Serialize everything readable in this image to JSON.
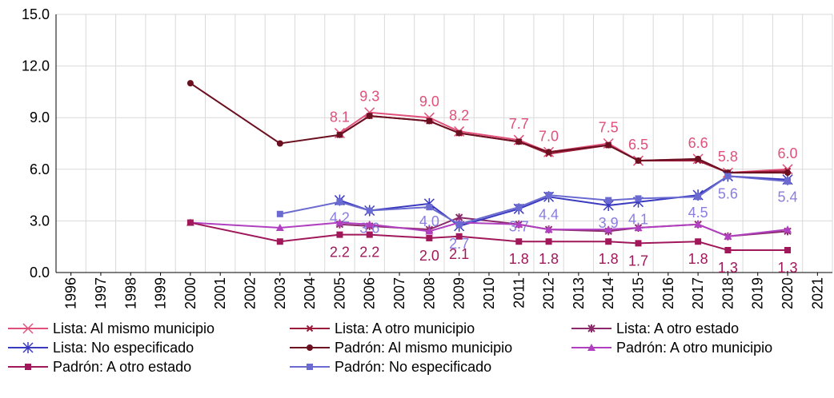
{
  "chart_data": {
    "type": "line",
    "categories": [
      "1996",
      "1997",
      "1998",
      "1999",
      "2000",
      "2001",
      "2002",
      "2003",
      "2004",
      "2005",
      "2006",
      "2007",
      "2008",
      "2009",
      "2010",
      "2011",
      "2012",
      "2013",
      "2014",
      "2015",
      "2016",
      "2017",
      "2018",
      "2019",
      "2020",
      "2021"
    ],
    "ylim": [
      0,
      15
    ],
    "yticks": [
      {
        "value": 0,
        "label": "0.0"
      },
      {
        "value": 3,
        "label": "3.0"
      },
      {
        "value": 6,
        "label": "6.0"
      },
      {
        "value": 9,
        "label": "9.0"
      },
      {
        "value": 12,
        "label": "12.0"
      },
      {
        "value": 15,
        "label": "15.0"
      }
    ],
    "grid": true,
    "series": [
      {
        "name": "Lista: Al mismo municipio",
        "color": "#e0507a",
        "marker": "x",
        "label_position": "above",
        "values": [
          null,
          null,
          null,
          null,
          null,
          null,
          null,
          null,
          null,
          8.1,
          9.3,
          null,
          9.0,
          8.2,
          null,
          7.7,
          7.0,
          null,
          7.5,
          6.5,
          null,
          6.6,
          5.8,
          null,
          6.0,
          null
        ],
        "value_labels": [
          null,
          null,
          null,
          null,
          null,
          null,
          null,
          null,
          null,
          "8.1",
          "9.3",
          null,
          "9.0",
          "8.2",
          null,
          "7.7",
          "7.0",
          null,
          "7.5",
          "6.5",
          null,
          "6.6",
          "5.8",
          null,
          "6.0",
          null
        ]
      },
      {
        "name": "Lista: A otro municipio",
        "color": "#9b1b3a",
        "marker": "smallx",
        "values": [
          null,
          null,
          null,
          null,
          null,
          null,
          null,
          null,
          null,
          8.0,
          9.1,
          null,
          8.8,
          8.1,
          null,
          7.6,
          6.9,
          null,
          7.4,
          6.5,
          null,
          6.5,
          5.8,
          null,
          5.9,
          null
        ]
      },
      {
        "name": "Lista: A otro estado",
        "color": "#8b2a6a",
        "marker": "asterisk",
        "values": [
          null,
          null,
          null,
          null,
          null,
          null,
          null,
          null,
          null,
          2.8,
          2.7,
          null,
          2.5,
          3.2,
          null,
          2.8,
          2.5,
          null,
          2.4,
          2.6,
          null,
          2.8,
          2.1,
          null,
          2.4,
          null
        ]
      },
      {
        "name": "Lista: No especificado",
        "color": "#3a3ac0",
        "marker": "star",
        "label_position": "below",
        "label_color": "#8a7ee0",
        "values": [
          null,
          null,
          null,
          null,
          null,
          null,
          null,
          null,
          null,
          4.2,
          3.6,
          null,
          4.0,
          2.7,
          null,
          3.7,
          4.4,
          null,
          3.9,
          4.1,
          null,
          4.5,
          5.6,
          null,
          5.4,
          null
        ],
        "value_labels": [
          null,
          null,
          null,
          null,
          null,
          null,
          null,
          null,
          null,
          "4.2",
          "3.6",
          null,
          "4.0",
          "2.7",
          null,
          "3.7",
          "4.4",
          null,
          "3.9",
          "4.1",
          null,
          "4.5",
          "5.6",
          null,
          "5.4",
          null
        ]
      },
      {
        "name": "Padrón: Al mismo municipio",
        "color": "#6b1020",
        "marker": "circle",
        "values": [
          null,
          null,
          null,
          null,
          11.0,
          null,
          null,
          7.5,
          null,
          8.0,
          9.1,
          null,
          8.8,
          8.1,
          null,
          7.6,
          7.0,
          null,
          7.4,
          6.5,
          null,
          6.6,
          5.8,
          null,
          5.8,
          null
        ]
      },
      {
        "name": "Padrón: A otro municipio",
        "color": "#b040c0",
        "marker": "triangle",
        "values": [
          null,
          null,
          null,
          null,
          2.9,
          null,
          null,
          2.6,
          null,
          2.9,
          2.8,
          null,
          2.4,
          2.9,
          null,
          2.8,
          2.5,
          null,
          2.5,
          2.6,
          null,
          2.8,
          2.1,
          null,
          2.5,
          null
        ]
      },
      {
        "name": "Padrón: A otro estado",
        "color": "#a0185a",
        "marker": "square",
        "label_position": "below",
        "values": [
          null,
          null,
          null,
          null,
          2.9,
          null,
          null,
          1.8,
          null,
          2.2,
          2.2,
          null,
          2.0,
          2.1,
          null,
          1.8,
          1.8,
          null,
          1.8,
          1.7,
          null,
          1.8,
          1.3,
          null,
          1.3,
          null
        ],
        "value_labels": [
          null,
          null,
          null,
          null,
          null,
          null,
          null,
          null,
          null,
          "2.2",
          "2.2",
          null,
          "2.0",
          "2.1",
          null,
          "1.8",
          "1.8",
          null,
          "1.8",
          "1.7",
          null,
          "1.8",
          "1.3",
          null,
          "1.3",
          null
        ]
      },
      {
        "name": "Padrón: No especificado",
        "color": "#6a6ad0",
        "marker": "square",
        "values": [
          null,
          null,
          null,
          null,
          null,
          null,
          null,
          3.4,
          null,
          4.1,
          3.6,
          null,
          3.8,
          2.8,
          null,
          3.8,
          4.5,
          null,
          4.2,
          4.3,
          null,
          4.4,
          5.6,
          null,
          5.3,
          null
        ]
      }
    ]
  }
}
